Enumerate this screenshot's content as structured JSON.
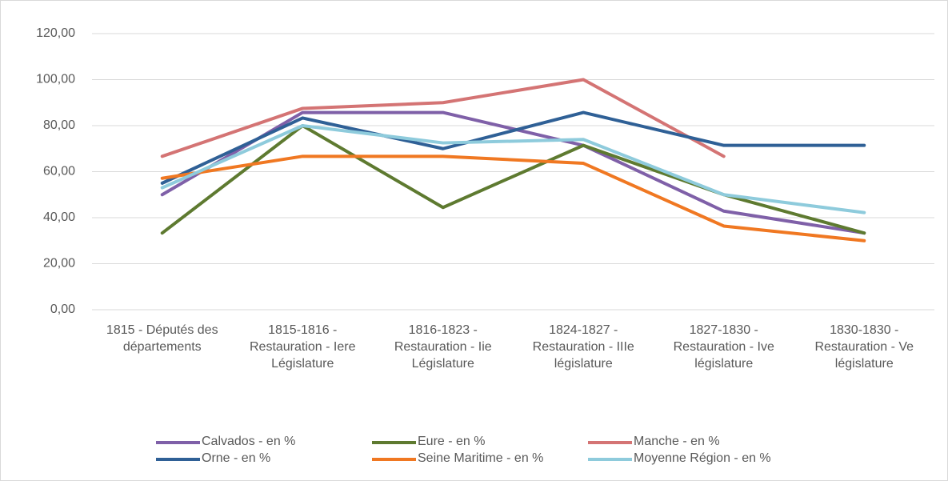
{
  "chart_data": {
    "type": "line",
    "categories": [
      "1815 - Députés des départements",
      "1815-1816 - Restauration - Iere Législature",
      "1816-1823 - Restauration - Iie Législature",
      "1824-1827 - Restauration - IIIe législature",
      "1827-1830 - Restauration - Ive législature",
      "1830-1830 - Restauration - Ve législature"
    ],
    "series": [
      {
        "name": "Calvados - en %",
        "color": "#7f60a8",
        "values": [
          50,
          85.71,
          85.71,
          71.43,
          42.86,
          33.33
        ]
      },
      {
        "name": "Eure - en %",
        "color": "#5e7a30",
        "values": [
          33.33,
          80,
          44.44,
          71.43,
          50,
          33.33
        ]
      },
      {
        "name": "Manche - en %",
        "color": "#d47474",
        "values": [
          66.67,
          87.5,
          90,
          100,
          66.67,
          null
        ]
      },
      {
        "name": "Orne - en %",
        "color": "#2f6096",
        "values": [
          55,
          83.33,
          70,
          85.71,
          71.43,
          71.43
        ]
      },
      {
        "name": "Seine Maritime - en %",
        "color": "#f07822",
        "values": [
          57.14,
          66.67,
          66.67,
          63.64,
          36.36,
          30
        ]
      },
      {
        "name": "Moyenne Région - en %",
        "color": "#8ecbdc",
        "values": [
          53,
          80,
          72.5,
          74,
          50,
          42.22
        ]
      }
    ],
    "ylim": [
      0,
      120
    ],
    "yticks": [
      {
        "value": 0,
        "label": "0,00"
      },
      {
        "value": 20,
        "label": "20,00"
      },
      {
        "value": 40,
        "label": "40,00"
      },
      {
        "value": 60,
        "label": "60,00"
      },
      {
        "value": 80,
        "label": "80,00"
      },
      {
        "value": 100,
        "label": "100,00"
      },
      {
        "value": 120,
        "label": "120,00"
      }
    ],
    "grid": true,
    "legend": "bottom"
  }
}
